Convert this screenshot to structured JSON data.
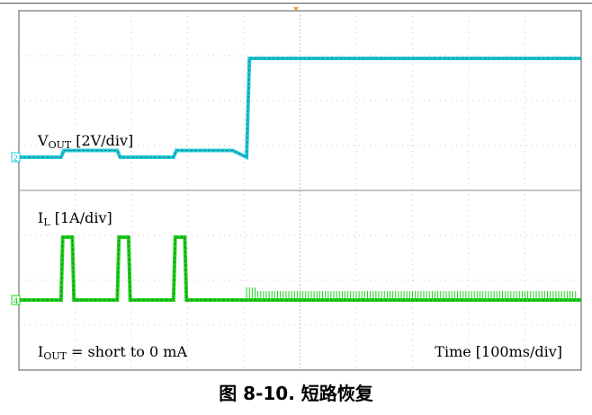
{
  "chart_data": {
    "type": "line",
    "grid": true,
    "time_label": "Time [100ms/div]",
    "condition": {
      "prefix": "I",
      "sub": "OUT",
      "suffix": " = short to 0 mA"
    },
    "series": [
      {
        "channel": "2",
        "label_prefix": "V",
        "label_sub": "OUT",
        "label_suffix": " [2V/div]",
        "color": "#22c8d8",
        "x": [
          0,
          0.75,
          0.8,
          1.75,
          1.8,
          2.75,
          2.8,
          3.8,
          4.05,
          4.1,
          10
        ],
        "y": [
          0.0,
          0.0,
          0.15,
          0.15,
          0.0,
          0.0,
          0.15,
          0.15,
          0.0,
          2.2,
          2.2
        ]
      },
      {
        "channel": "4",
        "label_prefix": "I",
        "label_sub": "L",
        "label_suffix": " [1A/div]",
        "color": "#1fd21f",
        "x": [
          0,
          0.75,
          0.78,
          0.95,
          0.98,
          1.75,
          1.78,
          1.95,
          1.98,
          2.75,
          2.78,
          2.95,
          2.98,
          10
        ],
        "y": [
          0.0,
          0.0,
          1.4,
          1.4,
          0.0,
          0.0,
          1.4,
          1.4,
          0.0,
          0.0,
          1.4,
          1.4,
          0.0,
          0.0
        ]
      }
    ]
  },
  "figure": {
    "caption": "图 8-10. 短路恢复"
  }
}
